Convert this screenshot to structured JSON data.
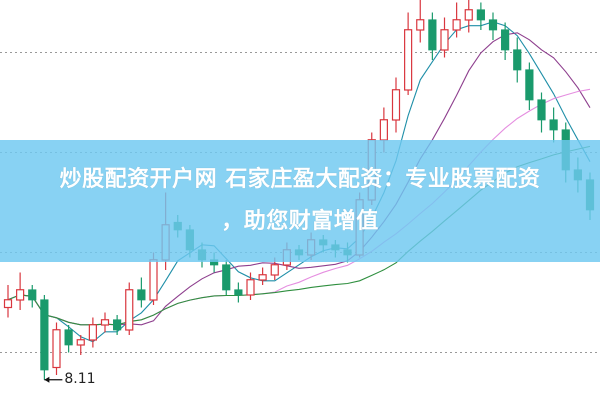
{
  "banner": {
    "line1": "炒股配资开户网 石家庄盈大配资：专业股票配资",
    "line2": "，助您财富增值"
  },
  "chart_data": {
    "type": "candlestick",
    "ylim": [
      7.3,
      23.3
    ],
    "grid": true,
    "grid_levels": [
      21.2,
      17.2,
      13.2,
      9.2
    ],
    "annotation": {
      "label": "8.11",
      "candle_index": 3,
      "value": 8.11
    },
    "colors": {
      "up": "#d9363e",
      "down": "#1a9a6c",
      "ma": [
        "#1f8fa8",
        "#8e3f8e",
        "#e58ee0",
        "#2f8f3f"
      ]
    },
    "moving_averages": [
      5,
      10,
      20,
      30
    ],
    "ohlc": [
      [
        11.0,
        11.9,
        10.6,
        11.31
      ],
      [
        11.3,
        12.4,
        10.9,
        11.71
      ],
      [
        11.7,
        11.9,
        11.0,
        11.31
      ],
      [
        11.3,
        11.5,
        8.11,
        8.51
      ],
      [
        8.6,
        10.4,
        8.3,
        10.11
      ],
      [
        10.1,
        10.3,
        9.2,
        9.51
      ],
      [
        9.5,
        9.9,
        9.1,
        9.71
      ],
      [
        9.7,
        10.6,
        9.4,
        10.31
      ],
      [
        10.3,
        10.8,
        10.0,
        10.51
      ],
      [
        10.5,
        10.7,
        9.9,
        10.11
      ],
      [
        10.1,
        12.0,
        9.9,
        11.71
      ],
      [
        11.7,
        12.2,
        11.0,
        11.31
      ],
      [
        11.3,
        13.2,
        11.1,
        12.91
      ],
      [
        12.9,
        15.6,
        12.5,
        14.31
      ],
      [
        14.4,
        14.7,
        13.8,
        14.11
      ],
      [
        14.1,
        14.3,
        13.0,
        13.31
      ],
      [
        13.3,
        13.6,
        12.6,
        12.91
      ],
      [
        12.9,
        13.2,
        12.4,
        12.71
      ],
      [
        12.7,
        12.9,
        11.5,
        11.71
      ],
      [
        11.7,
        12.0,
        11.2,
        11.51
      ],
      [
        11.5,
        12.4,
        11.3,
        12.11
      ],
      [
        12.1,
        12.6,
        11.9,
        12.31
      ],
      [
        12.3,
        13.0,
        12.1,
        12.71
      ],
      [
        12.7,
        13.6,
        12.5,
        13.31
      ],
      [
        13.3,
        13.5,
        12.9,
        13.11
      ],
      [
        13.1,
        14.0,
        12.9,
        13.71
      ],
      [
        13.7,
        13.9,
        13.2,
        13.51
      ],
      [
        13.5,
        13.7,
        13.0,
        13.31
      ],
      [
        13.3,
        13.6,
        12.8,
        13.11
      ],
      [
        13.1,
        15.6,
        13.0,
        15.31
      ],
      [
        15.3,
        18.0,
        15.1,
        17.71
      ],
      [
        17.7,
        19.0,
        17.2,
        18.51
      ],
      [
        18.5,
        20.2,
        18.0,
        19.71
      ],
      [
        19.7,
        22.8,
        19.5,
        22.11
      ],
      [
        22.1,
        23.3,
        21.6,
        22.51
      ],
      [
        22.5,
        22.8,
        20.9,
        21.31
      ],
      [
        21.3,
        22.6,
        21.0,
        22.11
      ],
      [
        22.1,
        23.2,
        21.8,
        22.51
      ],
      [
        22.5,
        23.3,
        22.0,
        22.91
      ],
      [
        22.9,
        23.2,
        22.1,
        22.51
      ],
      [
        22.5,
        22.8,
        21.7,
        22.11
      ],
      [
        22.1,
        22.4,
        20.9,
        21.31
      ],
      [
        21.3,
        21.8,
        20.0,
        20.51
      ],
      [
        20.5,
        20.8,
        18.9,
        19.31
      ],
      [
        19.3,
        19.6,
        18.0,
        18.51
      ],
      [
        18.5,
        19.0,
        17.6,
        18.11
      ],
      [
        18.1,
        18.4,
        16.0,
        16.51
      ],
      [
        16.5,
        17.0,
        15.6,
        16.11
      ],
      [
        16.1,
        16.4,
        14.5,
        14.91
      ]
    ]
  }
}
